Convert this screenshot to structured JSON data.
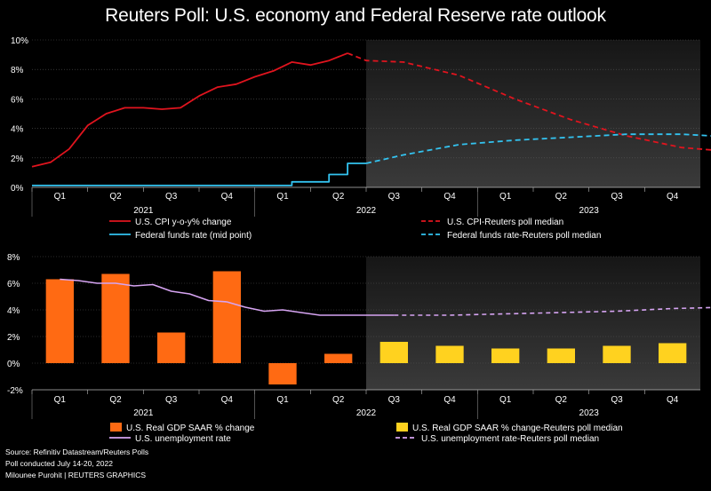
{
  "title": "Reuters Poll: U.S. economy and Federal Reserve rate outlook",
  "footer": {
    "source": "Source: Refinitiv Datastream/Reuters Polls",
    "poll": "Poll conducted July 14-20, 2022",
    "credit": "Milounee Purohit | REUTERS GRAPHICS"
  },
  "colors": {
    "cpi": "#e0141e",
    "fed": "#33c3f0",
    "gdp": "#ff6a13",
    "gdp_forecast": "#ffd21f",
    "unemployment": "#d6a4f2"
  },
  "chart_data": [
    {
      "type": "line",
      "title": "",
      "ylim": [
        0,
        10
      ],
      "yticks": [
        "0%",
        "2%",
        "4%",
        "6%",
        "8%",
        "10%"
      ],
      "quarters": [
        "Q1",
        "Q2",
        "Q3",
        "Q4",
        "Q1",
        "Q2",
        "Q3",
        "Q4",
        "Q1",
        "Q2",
        "Q3",
        "Q4"
      ],
      "years": [
        {
          "label": "2021",
          "quarters": [
            0,
            3
          ]
        },
        {
          "label": "2022",
          "quarters": [
            4,
            7
          ]
        },
        {
          "label": "2023",
          "quarters": [
            8,
            11
          ]
        }
      ],
      "forecast_start": "2022-07",
      "series": [
        {
          "name": "U.S. CPI y-o-y% change",
          "key": "cpi",
          "dashed": false,
          "points": [
            [
              "2021-01",
              1.4
            ],
            [
              "2021-02",
              1.7
            ],
            [
              "2021-03",
              2.6
            ],
            [
              "2021-04",
              4.2
            ],
            [
              "2021-05",
              5.0
            ],
            [
              "2021-06",
              5.4
            ],
            [
              "2021-07",
              5.4
            ],
            [
              "2021-08",
              5.3
            ],
            [
              "2021-09",
              5.4
            ],
            [
              "2021-10",
              6.2
            ],
            [
              "2021-11",
              6.8
            ],
            [
              "2021-12",
              7.0
            ],
            [
              "2022-01",
              7.5
            ],
            [
              "2022-02",
              7.9
            ],
            [
              "2022-03",
              8.5
            ],
            [
              "2022-04",
              8.3
            ],
            [
              "2022-05",
              8.6
            ],
            [
              "2022-06",
              9.1
            ]
          ]
        },
        {
          "name": "U.S. CPI-Reuters poll median",
          "key": "cpi",
          "dashed": true,
          "points": [
            [
              "2022-06",
              9.1
            ],
            [
              "2022-07",
              8.6
            ],
            [
              "2022-09",
              8.5
            ],
            [
              "2022-12",
              7.6
            ],
            [
              "2023-03",
              6.0
            ],
            [
              "2023-06",
              4.6
            ],
            [
              "2023-09",
              3.5
            ],
            [
              "2023-12",
              2.7
            ],
            [
              "2024-03",
              2.4
            ]
          ]
        },
        {
          "name": "Federal funds rate (mid point)",
          "key": "fed",
          "dashed": false,
          "step": true,
          "points": [
            [
              "2021-01",
              0.125
            ],
            [
              "2022-03",
              0.125
            ],
            [
              "2022-03",
              0.375
            ],
            [
              "2022-05",
              0.375
            ],
            [
              "2022-05",
              0.875
            ],
            [
              "2022-06",
              0.875
            ],
            [
              "2022-06",
              1.625
            ],
            [
              "2022-07",
              1.625
            ]
          ]
        },
        {
          "name": "Federal funds rate-Reuters poll median",
          "key": "fed",
          "dashed": true,
          "points": [
            [
              "2022-07",
              1.625
            ],
            [
              "2022-09",
              2.2
            ],
            [
              "2022-12",
              2.9
            ],
            [
              "2023-03",
              3.2
            ],
            [
              "2023-06",
              3.4
            ],
            [
              "2023-09",
              3.6
            ],
            [
              "2023-12",
              3.6
            ],
            [
              "2024-03",
              3.4
            ],
            [
              "2024-06",
              3.375
            ]
          ]
        }
      ]
    },
    {
      "type": "bar",
      "title": "",
      "ylim": [
        -2,
        8
      ],
      "yticks": [
        "-2%",
        "0%",
        "2%",
        "4%",
        "6%",
        "8%"
      ],
      "categories": [
        "Q1",
        "Q2",
        "Q3",
        "Q4",
        "Q1",
        "Q2",
        "Q3",
        "Q4",
        "Q1",
        "Q2",
        "Q3",
        "Q4"
      ],
      "years": [
        {
          "label": "2021",
          "quarters": [
            0,
            3
          ]
        },
        {
          "label": "2022",
          "quarters": [
            4,
            7
          ]
        },
        {
          "label": "2023",
          "quarters": [
            8,
            11
          ]
        }
      ],
      "forecast_start_index": 6,
      "series": [
        {
          "name": "U.S. Real GDP SAAR % change",
          "key": "gdp",
          "values": [
            6.3,
            6.7,
            2.3,
            6.9,
            -1.6,
            0.7,
            null,
            null,
            null,
            null,
            null,
            null
          ]
        },
        {
          "name": "U.S. Real GDP SAAR % change-Reuters poll median",
          "key": "gdp_forecast",
          "values": [
            null,
            null,
            null,
            null,
            null,
            null,
            1.6,
            1.3,
            1.1,
            1.1,
            1.3,
            1.5
          ]
        },
        {
          "name": "U.S. unemployment rate",
          "key": "unemployment",
          "dashed": false,
          "points": [
            [
              0,
              6.3
            ],
            [
              0.33,
              6.2
            ],
            [
              0.67,
              6.0
            ],
            [
              1,
              6.0
            ],
            [
              1.33,
              5.8
            ],
            [
              1.67,
              5.9
            ],
            [
              2,
              5.4
            ],
            [
              2.33,
              5.2
            ],
            [
              2.67,
              4.7
            ],
            [
              3,
              4.6
            ],
            [
              3.33,
              4.2
            ],
            [
              3.67,
              3.9
            ],
            [
              4,
              4.0
            ],
            [
              4.33,
              3.8
            ],
            [
              4.67,
              3.6
            ],
            [
              5,
              3.6
            ],
            [
              5.33,
              3.6
            ],
            [
              5.67,
              3.6
            ],
            [
              6,
              3.6
            ]
          ]
        },
        {
          "name": "U.S. unemployment rate-Reuters poll median",
          "key": "unemployment",
          "dashed": true,
          "points": [
            [
              6,
              3.6
            ],
            [
              7,
              3.6
            ],
            [
              8,
              3.7
            ],
            [
              9,
              3.8
            ],
            [
              10,
              3.9
            ],
            [
              11,
              4.1
            ],
            [
              12,
              4.2
            ]
          ]
        }
      ]
    }
  ]
}
